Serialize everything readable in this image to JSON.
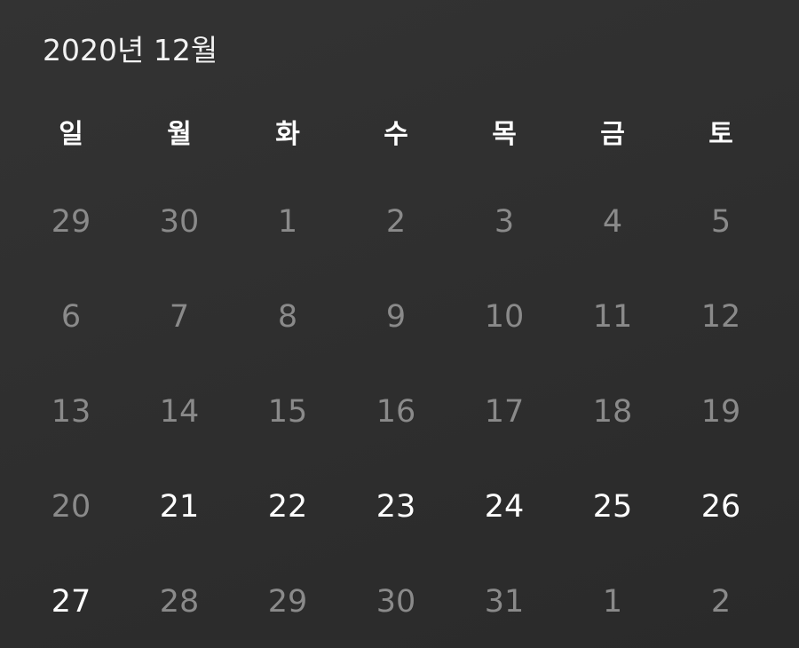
{
  "header": {
    "month_label": "2020년 12월"
  },
  "weekdays": [
    "일",
    "월",
    "화",
    "수",
    "목",
    "금",
    "토"
  ],
  "weeks": [
    [
      {
        "label": "29",
        "current": false
      },
      {
        "label": "30",
        "current": false
      },
      {
        "label": "1",
        "current": false
      },
      {
        "label": "2",
        "current": false
      },
      {
        "label": "3",
        "current": false
      },
      {
        "label": "4",
        "current": false
      },
      {
        "label": "5",
        "current": false
      }
    ],
    [
      {
        "label": "6",
        "current": false
      },
      {
        "label": "7",
        "current": false
      },
      {
        "label": "8",
        "current": false
      },
      {
        "label": "9",
        "current": false
      },
      {
        "label": "10",
        "current": false
      },
      {
        "label": "11",
        "current": false
      },
      {
        "label": "12",
        "current": false
      }
    ],
    [
      {
        "label": "13",
        "current": false
      },
      {
        "label": "14",
        "current": false
      },
      {
        "label": "15",
        "current": false
      },
      {
        "label": "16",
        "current": false
      },
      {
        "label": "17",
        "current": false
      },
      {
        "label": "18",
        "current": false
      },
      {
        "label": "19",
        "current": false
      }
    ],
    [
      {
        "label": "20",
        "current": false
      },
      {
        "label": "21",
        "current": true
      },
      {
        "label": "22",
        "current": true
      },
      {
        "label": "23",
        "current": true
      },
      {
        "label": "24",
        "current": true
      },
      {
        "label": "25",
        "current": true
      },
      {
        "label": "26",
        "current": true
      }
    ],
    [
      {
        "label": "27",
        "current": true
      },
      {
        "label": "28",
        "current": false
      },
      {
        "label": "29",
        "current": false
      },
      {
        "label": "30",
        "current": false
      },
      {
        "label": "31",
        "current": false
      },
      {
        "label": "1",
        "current": false
      },
      {
        "label": "2",
        "current": false
      }
    ]
  ],
  "colors": {
    "background": "#2e2e2e",
    "current_day_text": "#ffffff",
    "other_day_text": "#8a8a8a",
    "header_text": "#f2f2f2"
  }
}
